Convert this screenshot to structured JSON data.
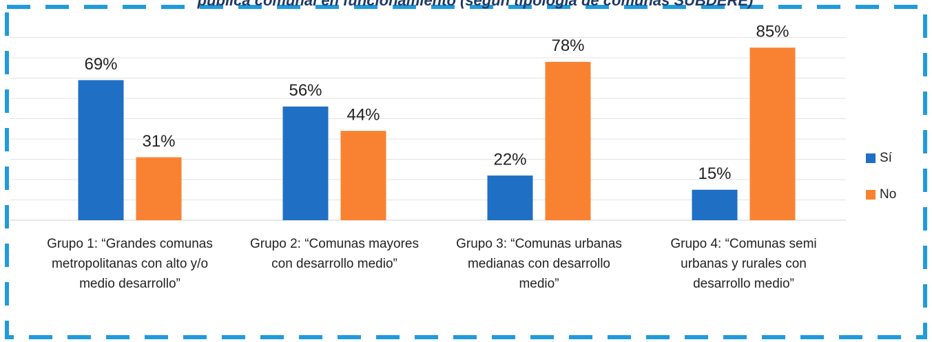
{
  "chart_data": {
    "type": "bar",
    "title": "pública comunal en funcionamiento (según tipología de comunas SUBDERE)",
    "categories": [
      "Grupo 1: “Grandes comunas metropolitanas con alto y/o medio desarrollo”",
      "Grupo 2: “Comunas mayores con desarrollo medio”",
      "Grupo 3: “Comunas urbanas medianas con desarrollo medio”",
      "Grupo 4: “Comunas semi urbanas y rurales con desarrollo medio”"
    ],
    "series": [
      {
        "name": "Sí",
        "color": "#1f6fc5",
        "values": [
          69,
          56,
          22,
          15
        ],
        "value_labels": [
          "69%",
          "56%",
          "22%",
          "15%"
        ]
      },
      {
        "name": "No",
        "color": "#f98232",
        "values": [
          31,
          44,
          78,
          85
        ],
        "value_labels": [
          "31%",
          "44%",
          "78%",
          "85%"
        ]
      }
    ],
    "ylim": [
      0,
      100
    ],
    "yticks": [
      0,
      10,
      20,
      30,
      40,
      50,
      60,
      70,
      80,
      90
    ],
    "grid": true,
    "legend": "right"
  }
}
